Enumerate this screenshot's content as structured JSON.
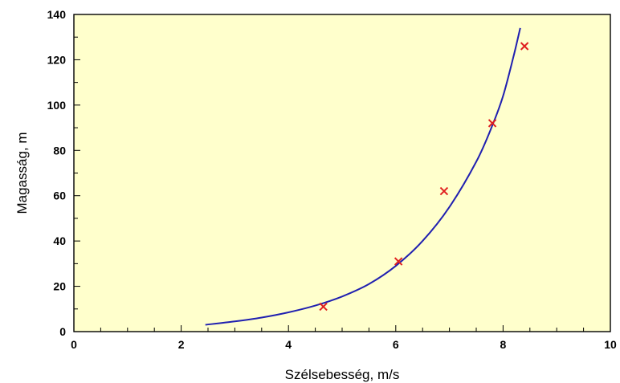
{
  "chart_data": {
    "type": "scatter",
    "title": "",
    "xlabel": "Szélsebesség, m/s",
    "ylabel": "Magasság, m",
    "xlim": [
      0,
      10
    ],
    "ylim": [
      0,
      140
    ],
    "xticks": [
      0,
      2,
      4,
      6,
      8,
      10
    ],
    "yticks": [
      0,
      20,
      40,
      60,
      80,
      100,
      120,
      140
    ],
    "grid": false,
    "background_color": "#ffffcc",
    "series": [
      {
        "kind": "scatter",
        "marker": "x",
        "color": "#e02020",
        "points": [
          {
            "x": 4.65,
            "y": 11
          },
          {
            "x": 6.05,
            "y": 31
          },
          {
            "x": 6.9,
            "y": 62
          },
          {
            "x": 7.8,
            "y": 92
          },
          {
            "x": 8.4,
            "y": 126
          }
        ]
      },
      {
        "kind": "line",
        "color": "#2020b0",
        "points": [
          {
            "x": 2.45,
            "y": 3
          },
          {
            "x": 3.0,
            "y": 4.5
          },
          {
            "x": 3.5,
            "y": 6.2
          },
          {
            "x": 4.0,
            "y": 8.5
          },
          {
            "x": 4.5,
            "y": 11.5
          },
          {
            "x": 5.0,
            "y": 15.5
          },
          {
            "x": 5.5,
            "y": 21
          },
          {
            "x": 6.0,
            "y": 29
          },
          {
            "x": 6.5,
            "y": 40
          },
          {
            "x": 7.0,
            "y": 55
          },
          {
            "x": 7.5,
            "y": 75
          },
          {
            "x": 7.8,
            "y": 91
          },
          {
            "x": 8.0,
            "y": 104
          },
          {
            "x": 8.2,
            "y": 122
          },
          {
            "x": 8.32,
            "y": 134
          }
        ]
      }
    ]
  }
}
